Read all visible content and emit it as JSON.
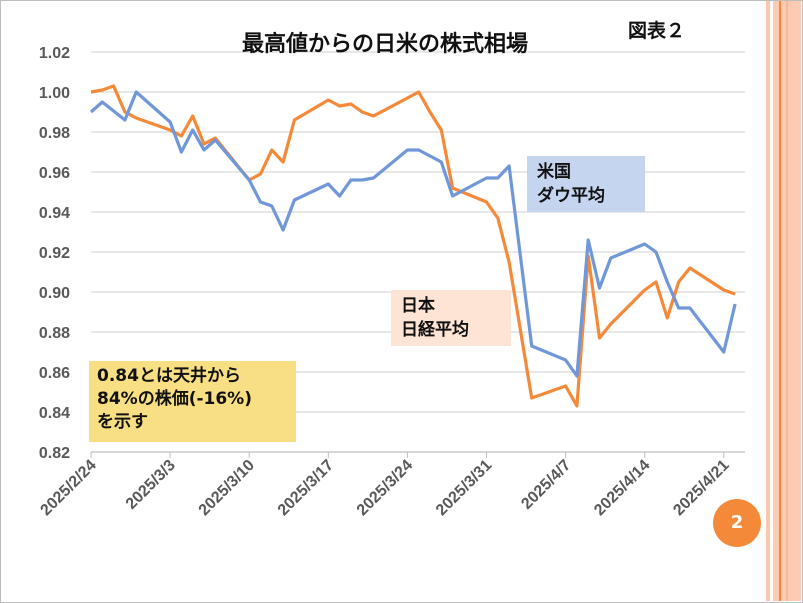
{
  "title": "最高値からの日米の株式相場",
  "figure_label": "図表２",
  "page_number": "2",
  "annotations": {
    "dow_label": [
      "米国",
      "ダウ平均"
    ],
    "nikkei_label": [
      "日本",
      "日経平均"
    ],
    "note": [
      "0.84とは天井から",
      "84%の株価(-16%)",
      "を示す"
    ]
  },
  "colors": {
    "dow": "#7097d8",
    "nikkei": "#f5893a",
    "dow_box": "#c6d5ef",
    "nikkei_box": "#fde4d4",
    "note_box": "#f8df84"
  },
  "chart_data": {
    "type": "line",
    "title": "最高値からの日米の株式相場",
    "xlabel": "",
    "ylabel": "",
    "x_unit": "days since 2025/2/24",
    "xlim": [
      0,
      58
    ],
    "ylim": [
      0.82,
      1.02
    ],
    "y_ticks": [
      "0.82",
      "0.84",
      "0.86",
      "0.88",
      "0.90",
      "0.92",
      "0.94",
      "0.96",
      "0.98",
      "1.00",
      "1.02"
    ],
    "x_ticks": [
      {
        "day": 0,
        "label": "2025/2/24"
      },
      {
        "day": 7,
        "label": "2025/3/3"
      },
      {
        "day": 14,
        "label": "2025/3/10"
      },
      {
        "day": 21,
        "label": "2025/3/17"
      },
      {
        "day": 28,
        "label": "2025/3/24"
      },
      {
        "day": 35,
        "label": "2025/3/31"
      },
      {
        "day": 42,
        "label": "2025/4/7"
      },
      {
        "day": 49,
        "label": "2025/4/14"
      },
      {
        "day": 56,
        "label": "2025/4/21"
      }
    ],
    "grid": true,
    "series": [
      {
        "name": "日経平均",
        "key": "nikkei",
        "x": [
          0,
          1,
          2,
          3,
          4,
          7,
          8,
          9,
          10,
          11,
          14,
          15,
          16,
          17,
          18,
          21,
          22,
          23,
          24,
          25,
          29,
          30,
          31,
          32,
          35,
          36,
          37,
          39,
          42,
          43,
          44,
          45,
          46,
          49,
          50,
          51,
          52,
          53,
          56,
          57
        ],
        "y": [
          1.0,
          1.001,
          1.003,
          0.99,
          0.987,
          0.981,
          0.978,
          0.988,
          0.974,
          0.977,
          0.956,
          0.959,
          0.971,
          0.965,
          0.986,
          0.996,
          0.993,
          0.994,
          0.99,
          0.988,
          1.0,
          0.99,
          0.981,
          0.952,
          0.945,
          0.937,
          0.915,
          0.847,
          0.853,
          0.843,
          0.918,
          0.877,
          0.884,
          0.901,
          0.905,
          0.887,
          0.905,
          0.912,
          0.901,
          0.899
        ]
      },
      {
        "name": "ダウ平均",
        "key": "dow",
        "x": [
          0,
          1,
          3,
          4,
          7,
          8,
          9,
          10,
          11,
          14,
          15,
          16,
          17,
          18,
          21,
          22,
          23,
          24,
          25,
          28,
          29,
          31,
          32,
          35,
          36,
          37,
          39,
          42,
          43,
          44,
          45,
          46,
          49,
          50,
          51,
          52,
          53,
          56,
          57
        ],
        "y": [
          0.99,
          0.995,
          0.986,
          1.0,
          0.985,
          0.97,
          0.981,
          0.971,
          0.976,
          0.956,
          0.945,
          0.943,
          0.931,
          0.946,
          0.954,
          0.948,
          0.956,
          0.956,
          0.957,
          0.971,
          0.971,
          0.965,
          0.948,
          0.957,
          0.957,
          0.963,
          0.873,
          0.866,
          0.858,
          0.926,
          0.902,
          0.917,
          0.924,
          0.92,
          0.905,
          0.892,
          0.892,
          0.87,
          0.894
        ]
      }
    ]
  }
}
